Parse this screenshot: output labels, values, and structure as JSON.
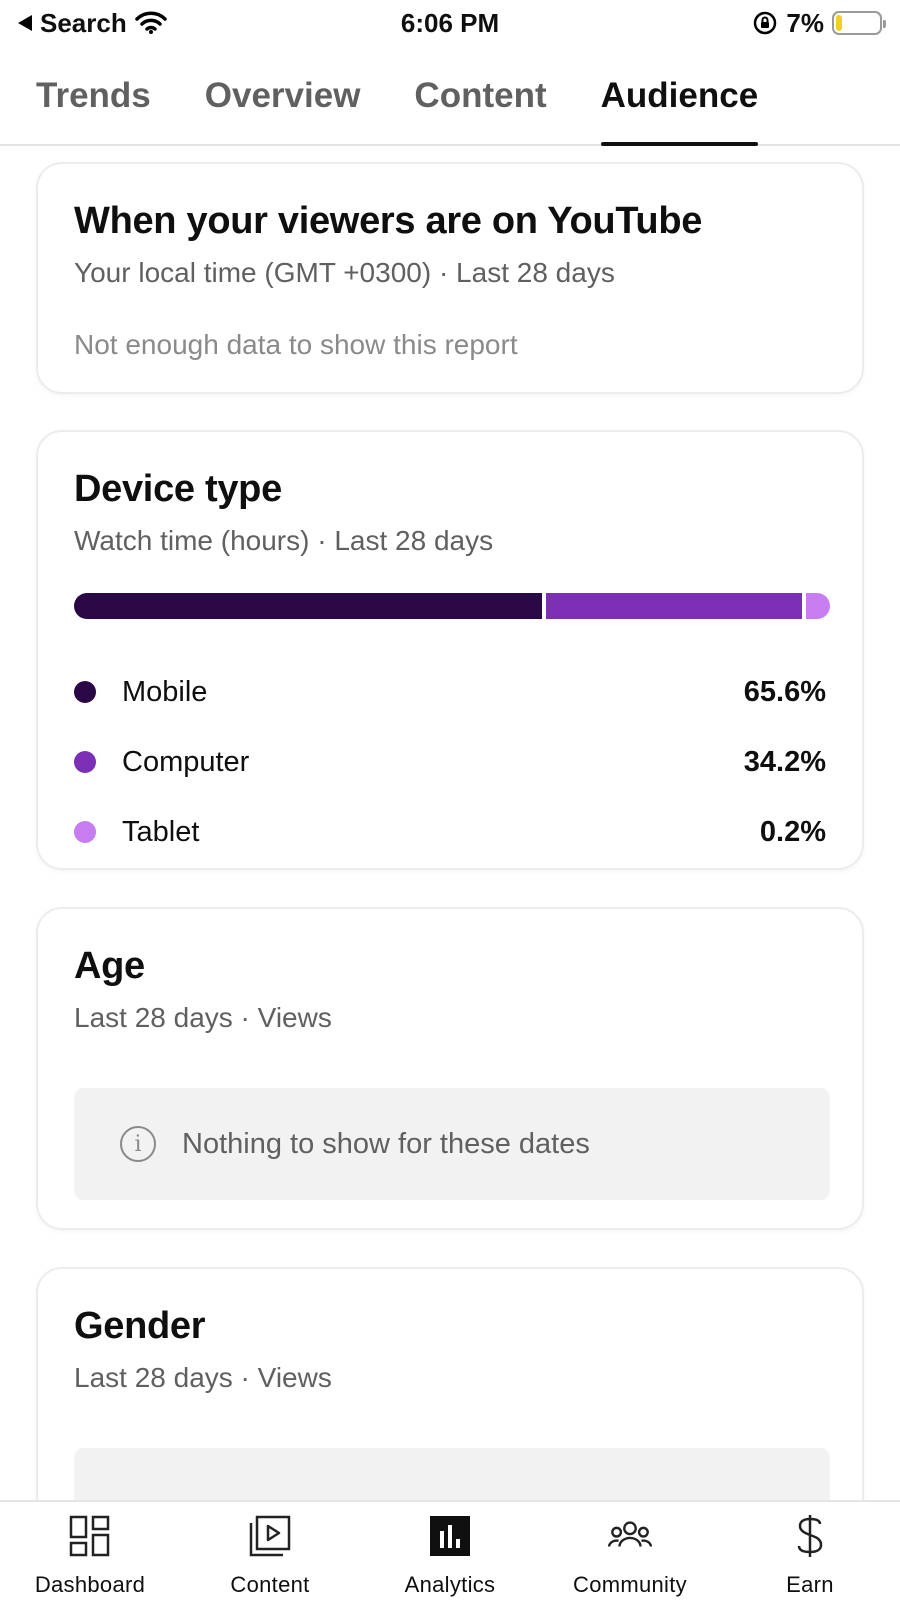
{
  "status_bar": {
    "back_label": "Search",
    "time": "6:06 PM",
    "battery": "7%"
  },
  "tabs": [
    {
      "label": "Trends",
      "active": false
    },
    {
      "label": "Overview",
      "active": false
    },
    {
      "label": "Content",
      "active": false
    },
    {
      "label": "Audience",
      "active": true
    }
  ],
  "viewers_card": {
    "title": "When your viewers are on YouTube",
    "subtitle": "Your local time (GMT +0300) · Last 28 days",
    "message": "Not enough data to show this report"
  },
  "device_card": {
    "title": "Device type",
    "subtitle": "Watch time (hours) · Last 28 days",
    "items": [
      {
        "label": "Mobile",
        "value": "65.6%",
        "share": 65.6,
        "color": "#2a0845"
      },
      {
        "label": "Computer",
        "value": "34.2%",
        "share": 34.2,
        "color": "#7b2fb5"
      },
      {
        "label": "Tablet",
        "value": "0.2%",
        "share": 0.2,
        "color": "#c77df0"
      }
    ]
  },
  "age_card": {
    "title": "Age",
    "subtitle": "Last 28 days · Views",
    "empty_text": "Nothing to show for these dates"
  },
  "gender_card": {
    "title": "Gender",
    "subtitle": "Last 28 days · Views"
  },
  "bottom_nav": [
    {
      "label": "Dashboard",
      "icon": "dashboard-icon"
    },
    {
      "label": "Content",
      "icon": "content-icon"
    },
    {
      "label": "Analytics",
      "icon": "analytics-icon"
    },
    {
      "label": "Community",
      "icon": "community-icon"
    },
    {
      "label": "Earn",
      "icon": "earn-icon"
    }
  ]
}
